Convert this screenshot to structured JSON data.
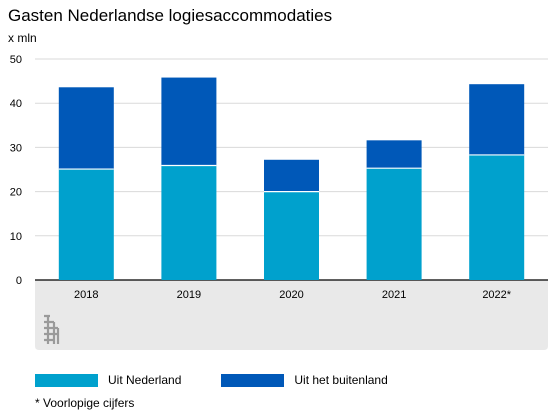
{
  "title": "Gasten Nederlandse logiesaccommodaties",
  "unit_label": "x mln",
  "footnote": "* Voorlopige cijfers",
  "colors": {
    "nl": "#00A1CD",
    "foreign": "#0058B8",
    "panel": "#E9E9E9",
    "grid": "#DADADA"
  },
  "chart_data": {
    "type": "bar",
    "stacked": true,
    "categories": [
      "2018",
      "2019",
      "2020",
      "2021",
      "2022*"
    ],
    "series": [
      {
        "name": "Uit Nederland",
        "values": [
          25.1,
          25.9,
          20.0,
          25.3,
          28.3
        ]
      },
      {
        "name": "Uit het buitenland",
        "values": [
          18.5,
          19.9,
          7.2,
          6.3,
          16.0
        ]
      }
    ],
    "ylim": [
      0,
      50
    ],
    "yticks": [
      0,
      10,
      20,
      30,
      40,
      50
    ],
    "legend_position": "bottom-left",
    "grid": true
  }
}
